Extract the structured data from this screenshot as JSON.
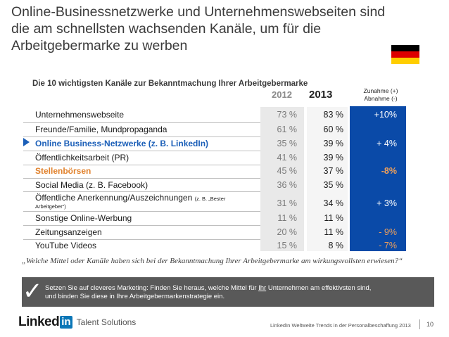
{
  "title": "Online-Businessnetzwerke und Unternehmenswebseiten sind die am schnellsten wachsenden Kanäle, um für die Arbeitgebermarke zu werben",
  "flag": {
    "name": "germany-flag",
    "colors": [
      "#000000",
      "#dd0000",
      "#ffce00"
    ]
  },
  "subtitle": "Die 10 wichtigsten Kanäle zur Bekanntmachung Ihrer Arbeitgebermarke",
  "headers": {
    "y2012": "2012",
    "y2013": "2013",
    "change_line1": "Zunahme (+)",
    "change_line2": "Abnahme (-)"
  },
  "rows": [
    {
      "label": "Unternehmenswebseite",
      "v2012": "73 %",
      "v2013": "83 %",
      "change": "+10%"
    },
    {
      "label": "Freunde/Familie, Mundpropaganda",
      "v2012": "61 %",
      "v2013": "60 %",
      "change": ""
    },
    {
      "label": "Online Business-Netzwerke (z. B. LinkedIn)",
      "v2012": "35 %",
      "v2013": "39 %",
      "change": "+ 4%"
    },
    {
      "label": "Öffentlichkeitsarbeit (PR)",
      "v2012": "41 %",
      "v2013": "39 %",
      "change": ""
    },
    {
      "label": "Stellenbörsen",
      "v2012": "45 %",
      "v2013": "37 %",
      "change": "-8%"
    },
    {
      "label": "Social Media (z. B. Facebook)",
      "v2012": "36 %",
      "v2013": "35 %",
      "change": ""
    },
    {
      "label": "Öffentliche Anerkennung/Auszeichnungen",
      "label_suffix_1": "(z. B. „Bester",
      "label_suffix_2": "Arbeitgeber“)",
      "v2012": "31 %",
      "v2013": "34 %",
      "change": "+ 3%"
    },
    {
      "label": "Sonstige Online-Werbung",
      "v2012": "11 %",
      "v2013": "11 %",
      "change": ""
    },
    {
      "label": "Zeitungsanzeigen",
      "v2012": "20 %",
      "v2013": "11 %",
      "change": "- 9%"
    },
    {
      "label": "YouTube Videos",
      "v2012": "15 %",
      "v2013": "8 %",
      "change": "- 7%"
    }
  ],
  "quote": "„Welche Mittel oder Kanäle haben sich bei der Bekanntmachung Ihrer Arbeitgebermarke am wirkungsvollsten erwiesen?“",
  "note": {
    "part1": "Setzen Sie auf cleveres Marketing: Finden Sie heraus, welche Mittel für ",
    "underlined": "Ihr",
    "part2": " Unternehmen am effektivsten sind,",
    "line2": "und binden Sie diese in Ihre Arbeitgebermarkenstrategie ein."
  },
  "logo": {
    "linked": "Linked",
    "in": "in",
    "suffix": "Talent Solutions"
  },
  "footer": {
    "text": "LinkedIn Weltweite Trends in der Personalbeschaffung 2013",
    "page": "10"
  },
  "colors": {
    "accent_blue": "#0a4aa8",
    "linkedin_blue": "#1b5fb8",
    "orange": "#e1822d"
  }
}
